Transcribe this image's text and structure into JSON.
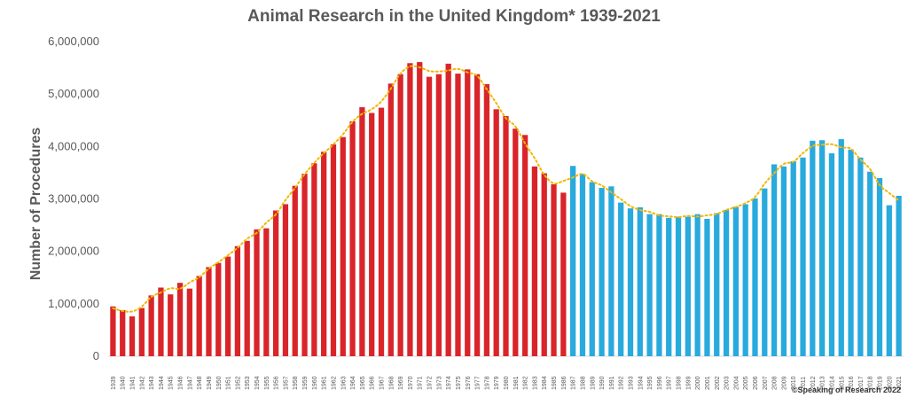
{
  "chart_data": {
    "type": "bar",
    "title": "Animal Research in the United Kingdom* 1939-2021",
    "ylabel": "Number of Procedures",
    "xlabel": "",
    "ylim": [
      0,
      6000000
    ],
    "yticks": [
      0,
      1000000,
      2000000,
      3000000,
      4000000,
      5000000,
      6000000
    ],
    "ytick_labels": [
      "0",
      "1,000,000",
      "2,000,000",
      "3,000,000",
      "4,000,000",
      "5,000,000",
      "6,000,000"
    ],
    "grid": false,
    "legend": "none",
    "colors": {
      "era1": "#d9252a",
      "era2": "#29aadd",
      "trend": "#f2b701"
    },
    "trend_line": "dotted moving average",
    "categories": [
      "1939",
      "1940",
      "1941",
      "1942",
      "1943",
      "1944",
      "1945",
      "1946",
      "1947",
      "1948",
      "1949",
      "1950",
      "1951",
      "1952",
      "1953",
      "1954",
      "1955",
      "1956",
      "1957",
      "1958",
      "1959",
      "1960",
      "1961",
      "1962",
      "1963",
      "1964",
      "1965",
      "1966",
      "1967",
      "1968",
      "1969",
      "1970",
      "1971",
      "1972",
      "1973",
      "1974",
      "1975",
      "1976",
      "1977",
      "1978",
      "1979",
      "1980",
      "1981",
      "1982",
      "1983",
      "1984",
      "1985",
      "1986",
      "1987",
      "1988",
      "1989",
      "1990",
      "1991",
      "1992",
      "1993",
      "1994",
      "1995",
      "1996",
      "1997",
      "1998",
      "1999",
      "2000",
      "2001",
      "2002",
      "2003",
      "2004",
      "2005",
      "2006",
      "2007",
      "2008",
      "2009",
      "2010",
      "2011",
      "2012",
      "2013",
      "2014",
      "2015",
      "2016",
      "2017",
      "2018",
      "2019",
      "2020",
      "2021"
    ],
    "series": [
      {
        "values": [
          950000,
          880000,
          760000,
          920000,
          1160000,
          1310000,
          1180000,
          1400000,
          1290000,
          1530000,
          1700000,
          1780000,
          1900000,
          2100000,
          2200000,
          2420000,
          2440000,
          2780000,
          2900000,
          3250000,
          3480000,
          3680000,
          3900000,
          4040000,
          4180000,
          4480000,
          4750000,
          4640000,
          4740000,
          5200000,
          5380000,
          5590000,
          5610000,
          5330000,
          5380000,
          5580000,
          5390000,
          5470000,
          5380000,
          5190000,
          4710000,
          4580000,
          4340000,
          4220000,
          3620000,
          3490000,
          3280000,
          3120000,
          3630000,
          3480000,
          3320000,
          3210000,
          3240000,
          2930000,
          2820000,
          2840000,
          2710000,
          2710000,
          2640000,
          2660000,
          2660000,
          2710000,
          2620000,
          2730000,
          2790000,
          2850000,
          2900000,
          3010000,
          3200000,
          3660000,
          3620000,
          3720000,
          3790000,
          4110000,
          4120000,
          3870000,
          4140000,
          3940000,
          3790000,
          3520000,
          3400000,
          2880000,
          3060000
        ]
      }
    ],
    "era_split": {
      "era1_last": "1986",
      "era2_first": "1987"
    }
  },
  "credit": "©Speaking of Research 2022"
}
